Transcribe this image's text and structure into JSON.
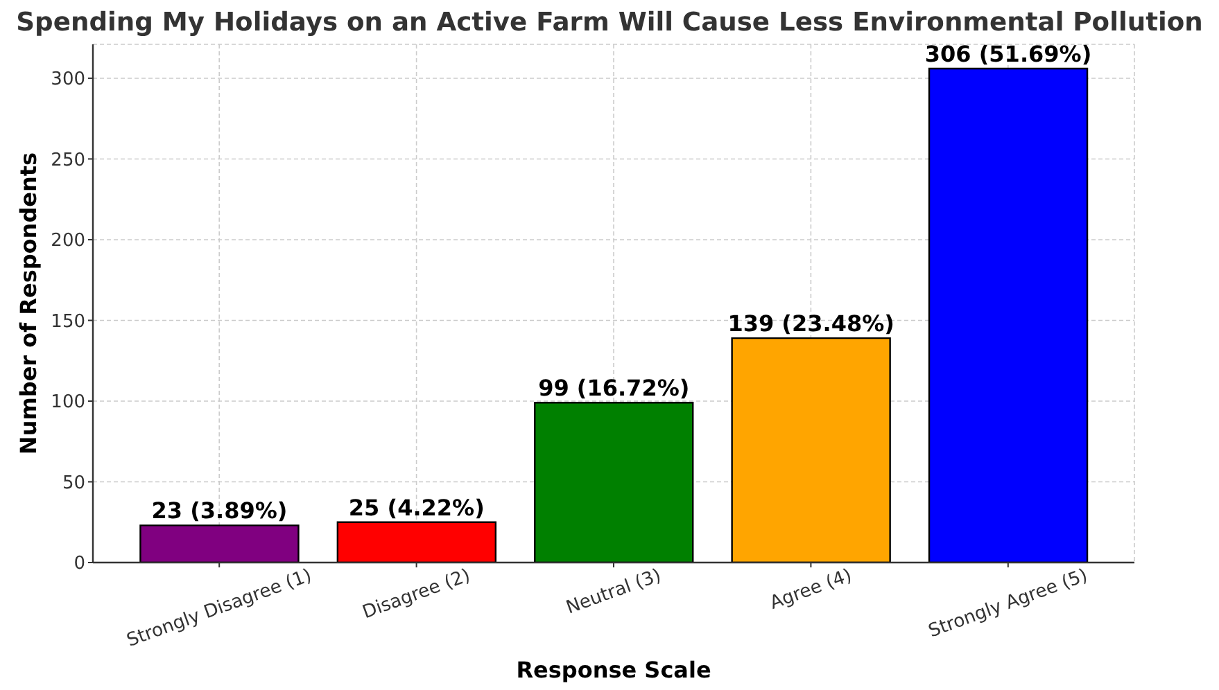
{
  "chart_data": {
    "type": "bar",
    "title": "Spending My Holidays on an Active Farm Will Cause Less Environmental Pollution",
    "xlabel": "Response Scale",
    "ylabel": "Number of Respondents",
    "categories": [
      "Strongly Disagree (1)",
      "Disagree (2)",
      "Neutral (3)",
      "Agree (4)",
      "Strongly Agree (5)"
    ],
    "values": [
      23,
      25,
      99,
      139,
      306
    ],
    "colors": [
      "#800080",
      "#ff0000",
      "#008000",
      "#ffa500",
      "#0000ff"
    ],
    "value_labels": [
      "23 (3.89%)",
      "25 (4.22%)",
      "99 (16.72%)",
      "139 (23.48%)",
      "306 (51.69%)"
    ],
    "ylim": [
      0,
      321
    ],
    "yticks": [
      0,
      50,
      100,
      150,
      200,
      250,
      300
    ],
    "grid": true
  }
}
